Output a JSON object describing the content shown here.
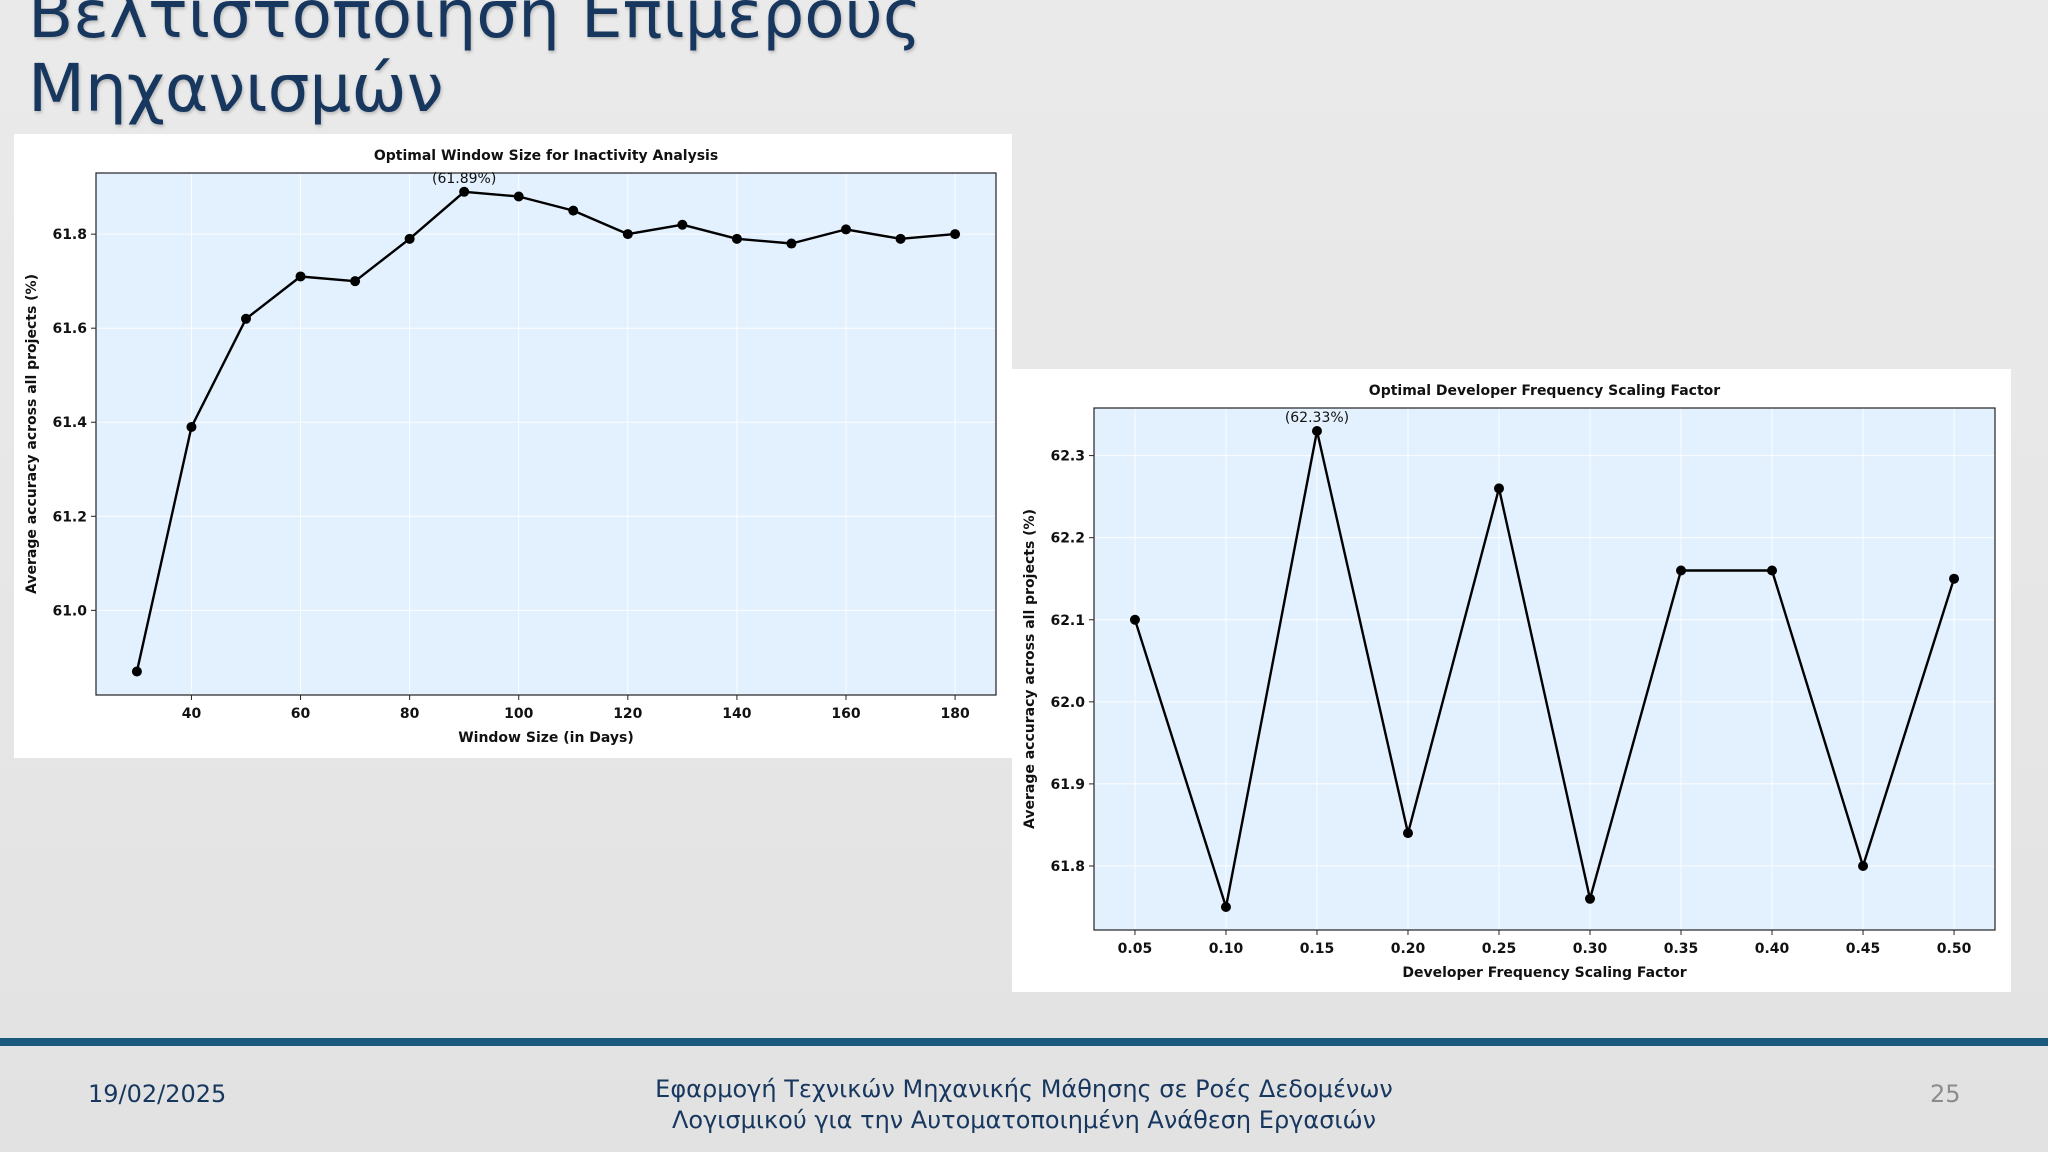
{
  "slide": {
    "title_line1": "Βελτιστοποίηση  Επιμέρους",
    "title_line2": "Μηχανισμών",
    "footer_date": "19/02/2025",
    "footer_title_line1": "Εφαρμογή Τεχνικών Μηχανικής Μάθησης σε Ροές Δεδομένων",
    "footer_title_line2": "Λογισμικού για την Αυτοματοποιημένη Ανάθεση Εργασιών",
    "page_number": "25"
  },
  "colors": {
    "title": "#17375e",
    "plot_background": "#e3f0fd",
    "line": "#000000",
    "footer_bar": "#1b5a7e",
    "page_number": "#8c8c8c"
  },
  "chart_data": [
    {
      "type": "line",
      "title": "Optimal Window Size for Inactivity Analysis",
      "xlabel": "Window Size (in Days)",
      "ylabel": "Average accuracy across all projects (%)",
      "x": [
        30,
        40,
        50,
        60,
        70,
        80,
        90,
        100,
        110,
        120,
        130,
        140,
        150,
        160,
        170,
        180
      ],
      "y": [
        60.87,
        61.39,
        61.62,
        61.71,
        61.7,
        61.79,
        61.89,
        61.88,
        61.85,
        61.8,
        61.82,
        61.79,
        61.78,
        61.81,
        61.79,
        61.8
      ],
      "xlim": [
        22.5,
        187.5
      ],
      "ylim": [
        60.82,
        61.93
      ],
      "xticks": [
        40,
        60,
        80,
        100,
        120,
        140,
        160,
        180
      ],
      "xtick_labels": [
        "40",
        "60",
        "80",
        "100",
        "120",
        "140",
        "160",
        "180"
      ],
      "yticks": [
        61.0,
        61.2,
        61.4,
        61.6,
        61.8
      ],
      "ytick_labels": [
        "61.0",
        "61.2",
        "61.4",
        "61.6",
        "61.8"
      ],
      "annotation": {
        "x": 90,
        "y": 61.89,
        "text": "(61.89%)"
      },
      "grid": true,
      "legend": "none"
    },
    {
      "type": "line",
      "title": "Optimal Developer Frequency Scaling Factor",
      "xlabel": "Developer Frequency Scaling Factor",
      "ylabel": "Average accuracy across all projects (%)",
      "x": [
        0.05,
        0.1,
        0.15,
        0.2,
        0.25,
        0.3,
        0.35,
        0.4,
        0.45,
        0.5
      ],
      "y": [
        62.1,
        61.75,
        62.33,
        61.84,
        62.26,
        61.76,
        62.16,
        62.16,
        61.8,
        62.15
      ],
      "xlim": [
        0.0275,
        0.5225
      ],
      "ylim": [
        61.722,
        62.358
      ],
      "xticks": [
        0.05,
        0.1,
        0.15,
        0.2,
        0.25,
        0.3,
        0.35,
        0.4,
        0.45,
        0.5
      ],
      "xtick_labels": [
        "0.05",
        "0.10",
        "0.15",
        "0.20",
        "0.25",
        "0.30",
        "0.35",
        "0.40",
        "0.45",
        "0.50"
      ],
      "yticks": [
        61.8,
        61.9,
        62.0,
        62.1,
        62.2,
        62.3
      ],
      "ytick_labels": [
        "61.8",
        "61.9",
        "62.0",
        "62.1",
        "62.2",
        "62.3"
      ],
      "annotation": {
        "x": 0.15,
        "y": 62.33,
        "text": "(62.33%)"
      },
      "grid": true,
      "legend": "none"
    }
  ]
}
